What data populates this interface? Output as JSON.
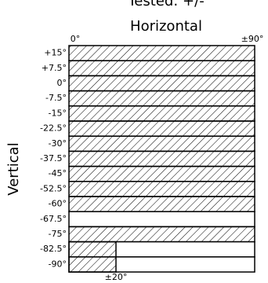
{
  "header": {
    "tested": "Tested: +/-",
    "horizontal": "Horizontal",
    "left_end": "0°",
    "right_end": "±90°",
    "vertical": "Vertical",
    "partial_end": "±20°"
  },
  "rows": [
    {
      "label": "+15°",
      "fill": "full"
    },
    {
      "label": "+7.5°",
      "fill": "full"
    },
    {
      "label": "0°",
      "fill": "full"
    },
    {
      "label": "-7.5°",
      "fill": "full"
    },
    {
      "label": "-15°",
      "fill": "full"
    },
    {
      "label": "-22.5°",
      "fill": "full"
    },
    {
      "label": "-30°",
      "fill": "full"
    },
    {
      "label": "-37.5°",
      "fill": "full"
    },
    {
      "label": "-45°",
      "fill": "full"
    },
    {
      "label": "-52.5°",
      "fill": "full"
    },
    {
      "label": "-60°",
      "fill": "full"
    },
    {
      "label": "-67.5°",
      "fill": "none"
    },
    {
      "label": "-75°",
      "fill": "full"
    },
    {
      "label": "-82.5°",
      "fill": "partial"
    },
    {
      "label": "-90°",
      "fill": "partial"
    }
  ]
}
